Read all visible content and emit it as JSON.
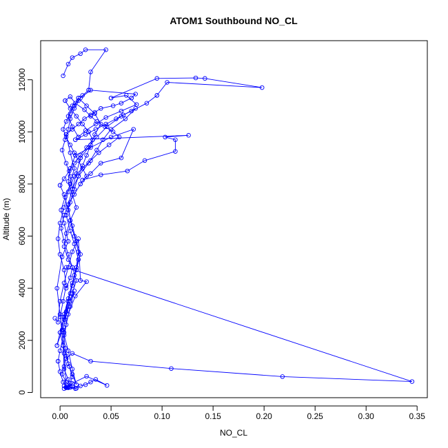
{
  "chart_data": {
    "type": "line",
    "title": "ATOM1 Southbound NO_CL",
    "xlabel": "NO_CL",
    "ylabel": "Altitude (m)",
    "xlim": [
      -0.019,
      0.36
    ],
    "ylim": [
      -200,
      13500
    ],
    "x_ticks": [
      0.0,
      0.05,
      0.1,
      0.15,
      0.2,
      0.25,
      0.3,
      0.35
    ],
    "x_tick_labels": [
      "0.00",
      "0.05",
      "0.10",
      "0.15",
      "0.20",
      "0.25",
      "0.30",
      "0.35"
    ],
    "y_ticks": [
      0,
      2000,
      4000,
      6000,
      8000,
      10000,
      12000
    ],
    "y_tick_labels": [
      "0",
      "2000",
      "4000",
      "6000",
      "8000",
      "10000",
      "12000"
    ],
    "grid": false,
    "series_color": "#0000ff",
    "marker": "open-circle",
    "series": [
      {
        "x": [
          0.003,
          0.008,
          0.012,
          0.02,
          0.025,
          0.045,
          0.03,
          0.028
        ],
        "y": [
          12150,
          12600,
          12850,
          13000,
          13150,
          13150,
          12300,
          11600
        ]
      },
      {
        "x": [
          0.028,
          0.022,
          0.018,
          0.012,
          0.008,
          0.012,
          0.018
        ],
        "y": [
          11600,
          11400,
          11200,
          11000,
          10600,
          10200,
          9800
        ]
      },
      {
        "x": [
          0.018,
          0.025,
          0.035,
          0.045,
          0.06,
          0.075,
          0.065,
          0.05
        ],
        "y": [
          9800,
          10050,
          10300,
          10550,
          10800,
          11050,
          11400,
          11300
        ]
      },
      {
        "x": [
          0.05,
          0.095,
          0.133,
          0.142,
          0.198,
          0.105,
          0.095
        ],
        "y": [
          11300,
          12050,
          12070,
          12050,
          11700,
          11900,
          11400
        ]
      },
      {
        "x": [
          0.095,
          0.085,
          0.07,
          0.062,
          0.055,
          0.045,
          0.035,
          0.025,
          0.015
        ],
        "y": [
          11400,
          11100,
          10800,
          10650,
          10500,
          10300,
          10100,
          9900,
          9700
        ]
      },
      {
        "x": [
          0.015,
          0.126,
          0.103,
          0.113,
          0.113,
          0.083,
          0.066,
          0.04,
          0.022
        ],
        "y": [
          9700,
          9870,
          9800,
          9700,
          9250,
          8900,
          8500,
          8350,
          8150
        ]
      },
      {
        "x": [
          0.022,
          0.03,
          0.04,
          0.06,
          0.072,
          0.05,
          0.03,
          0.015
        ],
        "y": [
          8150,
          8400,
          8800,
          9000,
          10100,
          9800,
          9400,
          9100
        ]
      },
      {
        "x": [
          0.015,
          0.01,
          0.008,
          0.012,
          0.016,
          0.01,
          0.006,
          0.004,
          0.008,
          0.012,
          0.01,
          0.006
        ],
        "y": [
          9100,
          8600,
          8100,
          7600,
          7100,
          6600,
          6100,
          5600,
          5100,
          4800,
          4400,
          4000
        ]
      },
      {
        "x": [
          0.006,
          0.345,
          0.218,
          0.109,
          0.03,
          0.012,
          0.006
        ],
        "y": [
          4800,
          420,
          610,
          920,
          1200,
          1500,
          1300
        ]
      },
      {
        "x": [
          0.006,
          0.004,
          0.002,
          0.006,
          0.01,
          0.008,
          0.004,
          0.003,
          0.006,
          0.01,
          0.014,
          0.01,
          0.005
        ],
        "y": [
          1300,
          1000,
          700,
          400,
          200,
          500,
          900,
          1800,
          2600,
          3300,
          3900,
          3500,
          2800
        ]
      },
      {
        "x": [
          -0.005,
          -0.002,
          0.0,
          0.004,
          0.008,
          0.012,
          0.018,
          0.02,
          0.026,
          0.015,
          0.008,
          0.004,
          0.0,
          -0.002
        ],
        "y": [
          2850,
          2700,
          3500,
          4200,
          4800,
          5400,
          5900,
          4300,
          4250,
          3700,
          3000,
          2300,
          1600,
          1200
        ]
      },
      {
        "x": [
          -0.002,
          0.0,
          0.003,
          0.006,
          0.01,
          0.015,
          0.02,
          0.025,
          0.03,
          0.035,
          0.046,
          0.026,
          0.012,
          0.006
        ],
        "y": [
          1200,
          800,
          400,
          180,
          200,
          150,
          250,
          300,
          400,
          500,
          270,
          620,
          350,
          200
        ]
      },
      {
        "x": [
          0.006,
          0.004,
          0.0,
          -0.003,
          0.002,
          0.008,
          0.004,
          0.001,
          0.005,
          0.01,
          0.014,
          0.01,
          0.006
        ],
        "y": [
          200,
          1500,
          3000,
          4000,
          5200,
          5800,
          6500,
          7000,
          7500,
          8000,
          8600,
          9200,
          9900
        ]
      },
      {
        "x": [
          0.006,
          0.012,
          0.018,
          0.024,
          0.03,
          0.034,
          0.04,
          0.052,
          0.06,
          0.07
        ],
        "y": [
          9900,
          10100,
          10300,
          10500,
          10650,
          10750,
          10900,
          11000,
          11100,
          11300
        ]
      },
      {
        "x": [
          0.07,
          0.074,
          0.03,
          0.02,
          0.014,
          0.01,
          0.008,
          0.005,
          0.002,
          0.006,
          0.01,
          0.012
        ],
        "y": [
          11300,
          11450,
          11600,
          11300,
          10900,
          10500,
          10100,
          9700,
          9300,
          8800,
          8300,
          7800
        ]
      },
      {
        "x": [
          0.012,
          0.018,
          0.028,
          0.036,
          0.042,
          0.05,
          0.064,
          0.074,
          0.06,
          0.046,
          0.036,
          0.028,
          0.02
        ],
        "y": [
          7800,
          8300,
          8800,
          9300,
          9700,
          10100,
          10500,
          10900,
          10600,
          10200,
          9800,
          9400,
          9000
        ]
      },
      {
        "x": [
          0.02,
          0.016,
          0.012,
          0.008,
          0.01,
          0.014,
          0.018,
          0.016,
          0.012,
          0.008,
          0.004,
          0.002,
          -0.003
        ],
        "y": [
          9000,
          8400,
          7800,
          7200,
          6600,
          6000,
          5400,
          4800,
          4200,
          3600,
          3000,
          2400,
          1800
        ]
      },
      {
        "x": [
          -0.003,
          0.0,
          0.004,
          0.008,
          0.012,
          0.016,
          0.02,
          0.016,
          0.012,
          0.008,
          0.004,
          0.0
        ],
        "y": [
          1800,
          2300,
          2900,
          3500,
          4100,
          4700,
          5300,
          5800,
          6400,
          7000,
          7600,
          7950
        ]
      },
      {
        "x": [
          0.0,
          0.004,
          0.009,
          0.014,
          0.02,
          0.026,
          0.032,
          0.028,
          0.022,
          0.016,
          0.01,
          0.005
        ],
        "y": [
          7950,
          8200,
          8500,
          8800,
          9100,
          9400,
          9700,
          10000,
          10300,
          10600,
          10900,
          11200
        ]
      },
      {
        "x": [
          0.005,
          0.01,
          0.015,
          0.024,
          0.03,
          0.036,
          0.044,
          0.052,
          0.058,
          0.048,
          0.038,
          0.03,
          0.022,
          0.014
        ],
        "y": [
          11200,
          11350,
          11100,
          10850,
          10600,
          10400,
          10200,
          10000,
          9800,
          9500,
          9200,
          8900,
          8600,
          8300
        ]
      },
      {
        "x": [
          0.014,
          0.008,
          0.004,
          0.0,
          -0.002,
          0.0,
          0.004,
          0.006,
          0.003,
          0.0,
          0.004,
          0.008,
          0.012,
          0.016
        ],
        "y": [
          8300,
          7700,
          7100,
          6500,
          5900,
          5300,
          4700,
          4100,
          3500,
          2900,
          2200,
          1600,
          900,
          300
        ]
      },
      {
        "x": [
          0.016,
          0.012,
          0.008,
          0.005,
          0.003,
          0.006,
          0.01,
          0.014,
          0.018,
          0.014,
          0.01,
          0.006
        ],
        "y": [
          300,
          700,
          1100,
          1700,
          2400,
          3100,
          3800,
          4500,
          5100,
          5700,
          6200,
          6800
        ]
      },
      {
        "x": [
          0.006,
          0.01,
          0.014,
          0.018,
          0.022,
          0.026,
          0.03,
          0.034,
          0.04,
          0.034,
          0.026,
          0.018
        ],
        "y": [
          6800,
          7300,
          7800,
          8300,
          8700,
          9100,
          9500,
          9900,
          10300,
          10700,
          11000,
          11300
        ]
      },
      {
        "x": [
          0.018,
          0.014,
          0.01,
          0.006,
          0.003,
          0.006,
          0.01,
          0.014,
          0.018,
          0.022,
          0.026,
          0.02
        ],
        "y": [
          11300,
          11000,
          10700,
          10400,
          10100,
          9800,
          9500,
          9200,
          8900,
          8600,
          8300,
          8000
        ]
      },
      {
        "x": [
          0.02,
          0.014,
          0.008,
          0.004,
          0.001,
          0.004,
          0.008,
          0.012,
          0.016,
          0.012,
          0.008,
          0.004,
          0.0,
          0.003
        ],
        "y": [
          8000,
          7600,
          7200,
          6800,
          6300,
          5800,
          5300,
          4800,
          4300,
          3800,
          3300,
          2800,
          2300,
          1800
        ]
      },
      {
        "x": [
          0.003,
          0.006,
          0.009,
          0.012,
          0.01,
          0.007,
          0.004,
          0.008,
          0.012,
          0.016,
          0.008,
          0.004
        ],
        "y": [
          1800,
          1400,
          1000,
          600,
          350,
          200,
          150,
          180,
          220,
          160,
          200,
          250
        ]
      }
    ]
  }
}
